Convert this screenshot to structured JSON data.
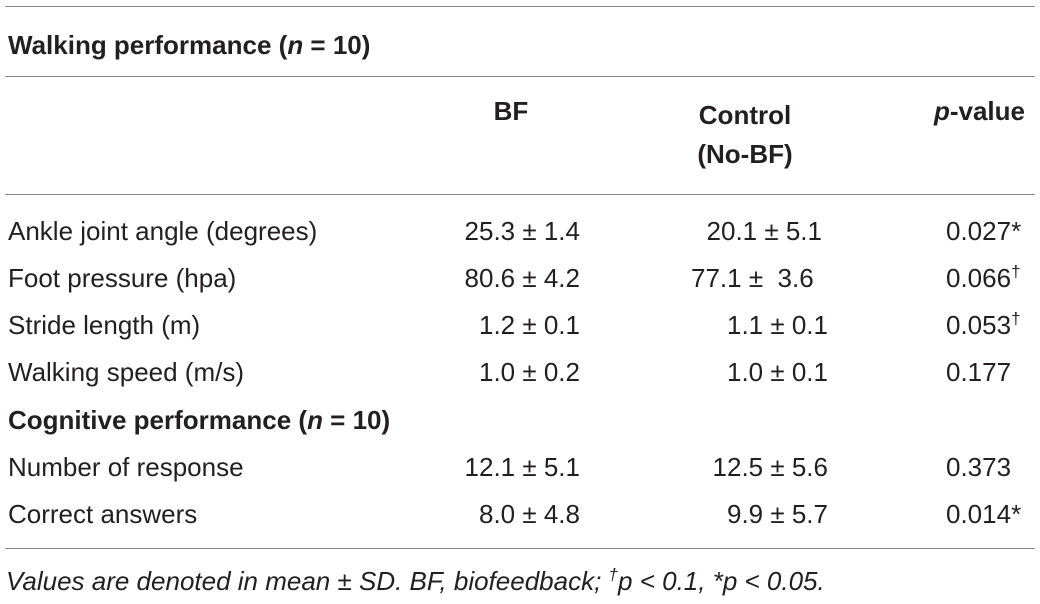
{
  "table": {
    "walking_section": {
      "title_prefix": "Walking performance (",
      "n_symbol": "n",
      "title_suffix": " = 10)"
    },
    "columns": {
      "bf": "BF",
      "control_line1": "Control",
      "control_line2": "(No-BF)",
      "pvalue_prefix": "p",
      "pvalue_suffix": "-value"
    },
    "walking_rows": [
      {
        "label": "Ankle joint angle (degrees)",
        "bf": "25.3 ± 1.4",
        "control": "20.1 ± 5.1",
        "p": "0.027",
        "mark": "*"
      },
      {
        "label": "Foot pressure (hpa)",
        "bf": "80.6 ± 4.2",
        "control": "77.1 ±  3.6",
        "p": "0.066",
        "mark": "†"
      },
      {
        "label": "Stride length (m)",
        "bf": "1.2 ± 0.1",
        "control": "1.1 ± 0.1",
        "p": "0.053",
        "mark": "†"
      },
      {
        "label": "Walking speed (m/s)",
        "bf": "1.0 ± 0.2",
        "control": "1.0 ± 0.1",
        "p": "0.177",
        "mark": ""
      }
    ],
    "cognitive_section": {
      "title_prefix": "Cognitive performance (",
      "n_symbol": "n",
      "title_suffix": " = 10)"
    },
    "cognitive_rows": [
      {
        "label": "Number of response",
        "bf": "12.1 ± 5.1",
        "control": "12.5 ± 5.6",
        "p": "0.373",
        "mark": ""
      },
      {
        "label": "Correct answers",
        "bf": "8.0 ± 4.8",
        "control": "9.9 ± 5.7",
        "p": "0.014",
        "mark": "*"
      }
    ]
  },
  "footnote": {
    "part1": "Values are denoted in mean ± SD. BF, biofeedback; ",
    "dagger": "†",
    "part2": "p < 0.1, *p < 0.05."
  }
}
